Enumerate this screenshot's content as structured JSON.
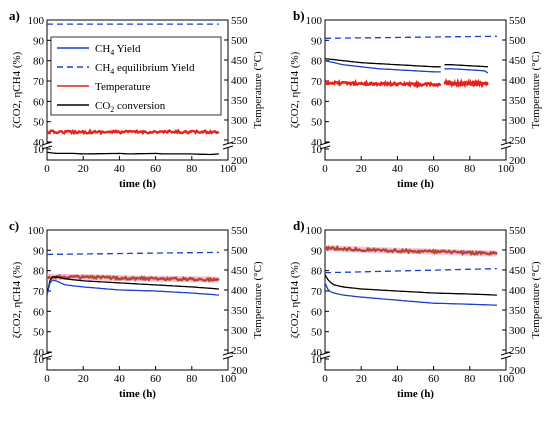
{
  "chart_data": [
    {
      "type": "line",
      "panel_label": "a)",
      "xlabel": "time (h)",
      "ylabel_left": "ζCO2, ηCH4 (%)",
      "ylabel_right": "Temperature (°C)",
      "xlim": [
        0,
        100
      ],
      "xticks": [
        0,
        20,
        40,
        60,
        80,
        100
      ],
      "ylim": [
        0,
        100
      ],
      "yticks": [
        10,
        40,
        50,
        60,
        70,
        80,
        90,
        100
      ],
      "y_axis_break": [
        10,
        40
      ],
      "y2lim": [
        200,
        550
      ],
      "y2ticks": [
        200,
        250,
        300,
        350,
        400,
        450,
        500,
        550
      ],
      "legend": {
        "placement": "upper-left",
        "entries": [
          {
            "label": "CH",
            "sub": "4",
            "tail": " Yield",
            "color": "#1a3fcc",
            "dash": false
          },
          {
            "label": "CH",
            "sub": "4",
            "tail": " equilibrium Yield",
            "color": "#1a3fcc",
            "dash": true
          },
          {
            "label": "Temperature",
            "sub": "",
            "tail": "",
            "color": "#e8221b",
            "dash": false
          },
          {
            "label": "CO",
            "sub": "2",
            "tail": " conversion",
            "color": "#000000",
            "dash": false
          }
        ]
      },
      "series": [
        {
          "name": "CH4 equilibrium Yield",
          "axis": "left",
          "color": "#1a3fcc",
          "dash": true,
          "x": [
            0,
            95
          ],
          "y": [
            98,
            98
          ]
        },
        {
          "name": "Temperature",
          "axis": "right",
          "color": "#e8221b",
          "dash": false,
          "noisy": true,
          "x": [
            0,
            95
          ],
          "y": [
            270,
            270
          ]
        },
        {
          "name": "CO2 conversion",
          "axis": "left",
          "color": "#000000",
          "dash": false,
          "x": [
            0,
            5,
            15,
            20,
            40,
            45,
            60,
            65,
            80,
            90,
            95
          ],
          "y": [
            7,
            6,
            6,
            5.5,
            6,
            5.5,
            6,
            5.5,
            5.5,
            5,
            5.5
          ]
        }
      ]
    },
    {
      "type": "line",
      "panel_label": "b)",
      "xlabel": "time (h)",
      "ylabel_left": "ζCO2, ηCH4 (%)",
      "ylabel_right": "Temperature (°C)",
      "xlim": [
        0,
        100
      ],
      "xticks": [
        0,
        20,
        40,
        60,
        80,
        100
      ],
      "ylim": [
        0,
        100
      ],
      "yticks": [
        10,
        40,
        50,
        60,
        70,
        80,
        90,
        100
      ],
      "y_axis_break": [
        10,
        40
      ],
      "y2lim": [
        200,
        550
      ],
      "y2ticks": [
        200,
        250,
        300,
        350,
        400,
        450,
        500,
        550
      ],
      "series": [
        {
          "name": "CH4 equilibrium Yield",
          "axis": "left",
          "color": "#1a3fcc",
          "dash": true,
          "x": [
            0,
            95
          ],
          "y": [
            91,
            92
          ]
        },
        {
          "name": "CO2 conversion",
          "axis": "left",
          "color": "#000000",
          "dash": false,
          "x": [
            0,
            10,
            20,
            30,
            40,
            50,
            60,
            64
          ],
          "y": [
            81,
            80,
            79,
            78.5,
            78,
            77.5,
            77,
            77
          ]
        },
        {
          "name": "CO2 conversion (restart)",
          "axis": "left",
          "color": "#000000",
          "dash": false,
          "x": [
            66,
            70,
            80,
            90
          ],
          "y": [
            78,
            78,
            77.5,
            77
          ]
        },
        {
          "name": "CH4 Yield",
          "axis": "left",
          "color": "#1a3fcc",
          "dash": false,
          "x": [
            0,
            10,
            20,
            30,
            40,
            50,
            60,
            64
          ],
          "y": [
            80,
            78,
            77,
            76,
            75.5,
            75,
            74.5,
            74.5
          ]
        },
        {
          "name": "CH4 Yield (restart)",
          "axis": "left",
          "color": "#1a3fcc",
          "dash": false,
          "x": [
            66,
            70,
            80,
            88,
            90
          ],
          "y": [
            76,
            76,
            75.5,
            75,
            74
          ]
        },
        {
          "name": "Temperature",
          "axis": "right",
          "color": "#e8221b",
          "dash": false,
          "noisy": true,
          "x": [
            0,
            20,
            40,
            64
          ],
          "y": [
            393,
            391,
            390,
            388
          ]
        },
        {
          "name": "Temperature (restart)",
          "axis": "right",
          "color": "#e8221b",
          "dash": false,
          "noisy": true,
          "x": [
            66,
            80,
            90
          ],
          "y": [
            392,
            391,
            391
          ]
        }
      ]
    },
    {
      "type": "line",
      "panel_label": "c)",
      "xlabel": "time (h)",
      "ylabel_left": "ζCO2, ηCH4 (%)",
      "ylabel_right": "Temperature (°C)",
      "xlim": [
        0,
        100
      ],
      "xticks": [
        0,
        20,
        40,
        60,
        80,
        100
      ],
      "ylim": [
        0,
        100
      ],
      "yticks": [
        10,
        40,
        50,
        60,
        70,
        80,
        90,
        100
      ],
      "y_axis_break": [
        10,
        40
      ],
      "y2lim": [
        200,
        550
      ],
      "y2ticks": [
        200,
        250,
        300,
        350,
        400,
        450,
        500,
        550
      ],
      "series": [
        {
          "name": "CH4 equilibrium Yield",
          "axis": "left",
          "color": "#1a3fcc",
          "dash": true,
          "x": [
            0,
            95
          ],
          "y": [
            88,
            89
          ]
        },
        {
          "name": "Temperature",
          "axis": "right",
          "color": "#e8221b",
          "dash": false,
          "noisy": true,
          "band": true,
          "x": [
            0,
            20,
            50,
            95
          ],
          "y": [
            433,
            432,
            429,
            426
          ]
        },
        {
          "name": "CO2 conversion",
          "axis": "left",
          "color": "#000000",
          "dash": false,
          "x": [
            0,
            2,
            5,
            10,
            20,
            40,
            60,
            80,
            95
          ],
          "y": [
            68,
            77,
            77,
            76,
            75,
            74,
            73,
            72,
            71
          ]
        },
        {
          "name": "CH4 Yield",
          "axis": "left",
          "color": "#1a3fcc",
          "dash": false,
          "x": [
            0,
            2,
            5,
            10,
            20,
            40,
            60,
            80,
            95
          ],
          "y": [
            68,
            75.5,
            75,
            73,
            72,
            70.5,
            70,
            69,
            68
          ]
        }
      ]
    },
    {
      "type": "line",
      "panel_label": "d)",
      "xlabel": "time (h)",
      "ylabel_left": "ζCO2, ηCH4 (%)",
      "ylabel_right": "Temperature (°C)",
      "xlim": [
        0,
        100
      ],
      "xticks": [
        0,
        20,
        40,
        60,
        80,
        100
      ],
      "ylim": [
        0,
        100
      ],
      "yticks": [
        10,
        40,
        50,
        60,
        70,
        80,
        90,
        100
      ],
      "y_axis_break": [
        10,
        40
      ],
      "y2lim": [
        200,
        550
      ],
      "y2ticks": [
        200,
        250,
        300,
        350,
        400,
        450,
        500,
        550
      ],
      "series": [
        {
          "name": "CH4 equilibrium Yield",
          "axis": "left",
          "color": "#1a3fcc",
          "dash": true,
          "x": [
            0,
            95
          ],
          "y": [
            79,
            81
          ]
        },
        {
          "name": "Temperature",
          "axis": "right",
          "color": "#e8221b",
          "dash": false,
          "noisy": true,
          "band": true,
          "x": [
            0,
            20,
            40,
            60,
            80,
            95
          ],
          "y": [
            505,
            501,
            498,
            496,
            493,
            491
          ]
        },
        {
          "name": "CO2 conversion",
          "axis": "left",
          "color": "#000000",
          "dash": false,
          "x": [
            0,
            2,
            5,
            10,
            20,
            40,
            60,
            80,
            95
          ],
          "y": [
            78,
            75,
            73,
            72,
            71,
            70,
            69,
            68.5,
            68
          ]
        },
        {
          "name": "CH4 Yield",
          "axis": "left",
          "color": "#1a3fcc",
          "dash": false,
          "x": [
            0,
            2,
            5,
            10,
            20,
            40,
            60,
            80,
            95
          ],
          "y": [
            74,
            70,
            69,
            68,
            67,
            65.5,
            64,
            63.5,
            63
          ]
        }
      ]
    }
  ]
}
